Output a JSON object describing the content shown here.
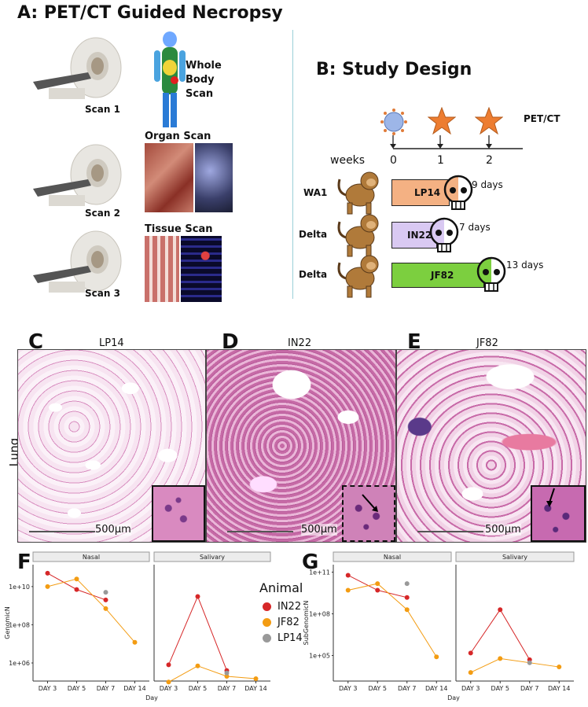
{
  "panelA": {
    "title": "A: PET/CT Guided Necropsy",
    "scan1": "Scan 1",
    "scan2": "Scan 2",
    "scan3": "Scan 3",
    "whole_body": [
      "Whole",
      "Body",
      "Scan"
    ],
    "organ_scan": "Organ Scan",
    "tissue_scan": "Tissue Scan"
  },
  "panelB": {
    "title": "B: Study Design",
    "petct": "PET/CT",
    "weeks_label": "weeks",
    "week_ticks": [
      "0",
      "1",
      "2"
    ],
    "rows": [
      {
        "group": "WA1",
        "bar": "LP14",
        "days": "9 days",
        "color": "#f4b183"
      },
      {
        "group": "Delta",
        "bar": "IN22",
        "days": "7 days",
        "color": "#d9c9f2"
      },
      {
        "group": "Delta",
        "bar": "JF82",
        "days": "13 days",
        "color": "#7ccf3f"
      }
    ]
  },
  "histology": {
    "row_label": "Lung",
    "panels": [
      {
        "letter": "C",
        "title": "LP14",
        "scale": "500µm"
      },
      {
        "letter": "D",
        "title": "IN22",
        "scale": "500µm"
      },
      {
        "letter": "E",
        "title": "JF82",
        "scale": "500µm"
      }
    ]
  },
  "legend": {
    "title": "Animal",
    "entries": [
      {
        "name": "IN22",
        "color": "#d62728"
      },
      {
        "name": "JF82",
        "color": "#f39c12"
      },
      {
        "name": "LP14",
        "color": "#999999"
      }
    ]
  },
  "chart_data": [
    {
      "type": "line",
      "panel": "F",
      "ylabel": "GenomicN",
      "xlabel": "Day",
      "log_scale": true,
      "yticks": [
        "1e+06",
        "1e+08",
        "1e+10"
      ],
      "facets": [
        "Nasal",
        "Salivary"
      ],
      "categories": [
        "DAY 3",
        "DAY 5",
        "DAY 7",
        "DAY 14"
      ],
      "series": [
        {
          "name": "IN22",
          "facet": "Nasal",
          "values": [
            50000000000.0,
            7000000000.0,
            2000000000.0,
            null
          ]
        },
        {
          "name": "JF82",
          "facet": "Nasal",
          "values": [
            10000000000.0,
            25000000000.0,
            700000000.0,
            12000000.0
          ]
        },
        {
          "name": "LP14",
          "facet": "Nasal",
          "values": [
            null,
            null,
            5000000000.0,
            null
          ]
        },
        {
          "name": "IN22",
          "facet": "Salivary",
          "values": [
            800000.0,
            3000000000.0,
            400000.0,
            null
          ]
        },
        {
          "name": "JF82",
          "facet": "Salivary",
          "values": [
            100000.0,
            700000.0,
            200000.0,
            150000.0
          ]
        },
        {
          "name": "LP14",
          "facet": "Salivary",
          "values": [
            null,
            null,
            300000.0,
            null
          ]
        }
      ]
    },
    {
      "type": "line",
      "panel": "G",
      "ylabel": "SubGenomicN",
      "xlabel": "Day",
      "log_scale": true,
      "yticks": [
        "1e+05",
        "1e+08",
        "1e+11"
      ],
      "facets": [
        "Nasal",
        "Salivary"
      ],
      "categories": [
        "DAY 3",
        "DAY 5",
        "DAY 7",
        "DAY 14"
      ],
      "series": [
        {
          "name": "IN22",
          "facet": "Nasal",
          "values": [
            60000000000.0,
            5000000000.0,
            1500000000.0,
            null
          ]
        },
        {
          "name": "JF82",
          "facet": "Nasal",
          "values": [
            5000000000.0,
            15000000000.0,
            200000000.0,
            80000.0
          ]
        },
        {
          "name": "LP14",
          "facet": "Nasal",
          "values": [
            null,
            null,
            15000000000.0,
            null
          ]
        },
        {
          "name": "IN22",
          "facet": "Salivary",
          "values": [
            150000.0,
            200000000.0,
            50000.0,
            null
          ]
        },
        {
          "name": "JF82",
          "facet": "Salivary",
          "values": [
            6000.0,
            60000.0,
            null,
            15000.0
          ]
        },
        {
          "name": "LP14",
          "facet": "Salivary",
          "values": [
            null,
            null,
            30000.0,
            null
          ]
        }
      ]
    }
  ]
}
